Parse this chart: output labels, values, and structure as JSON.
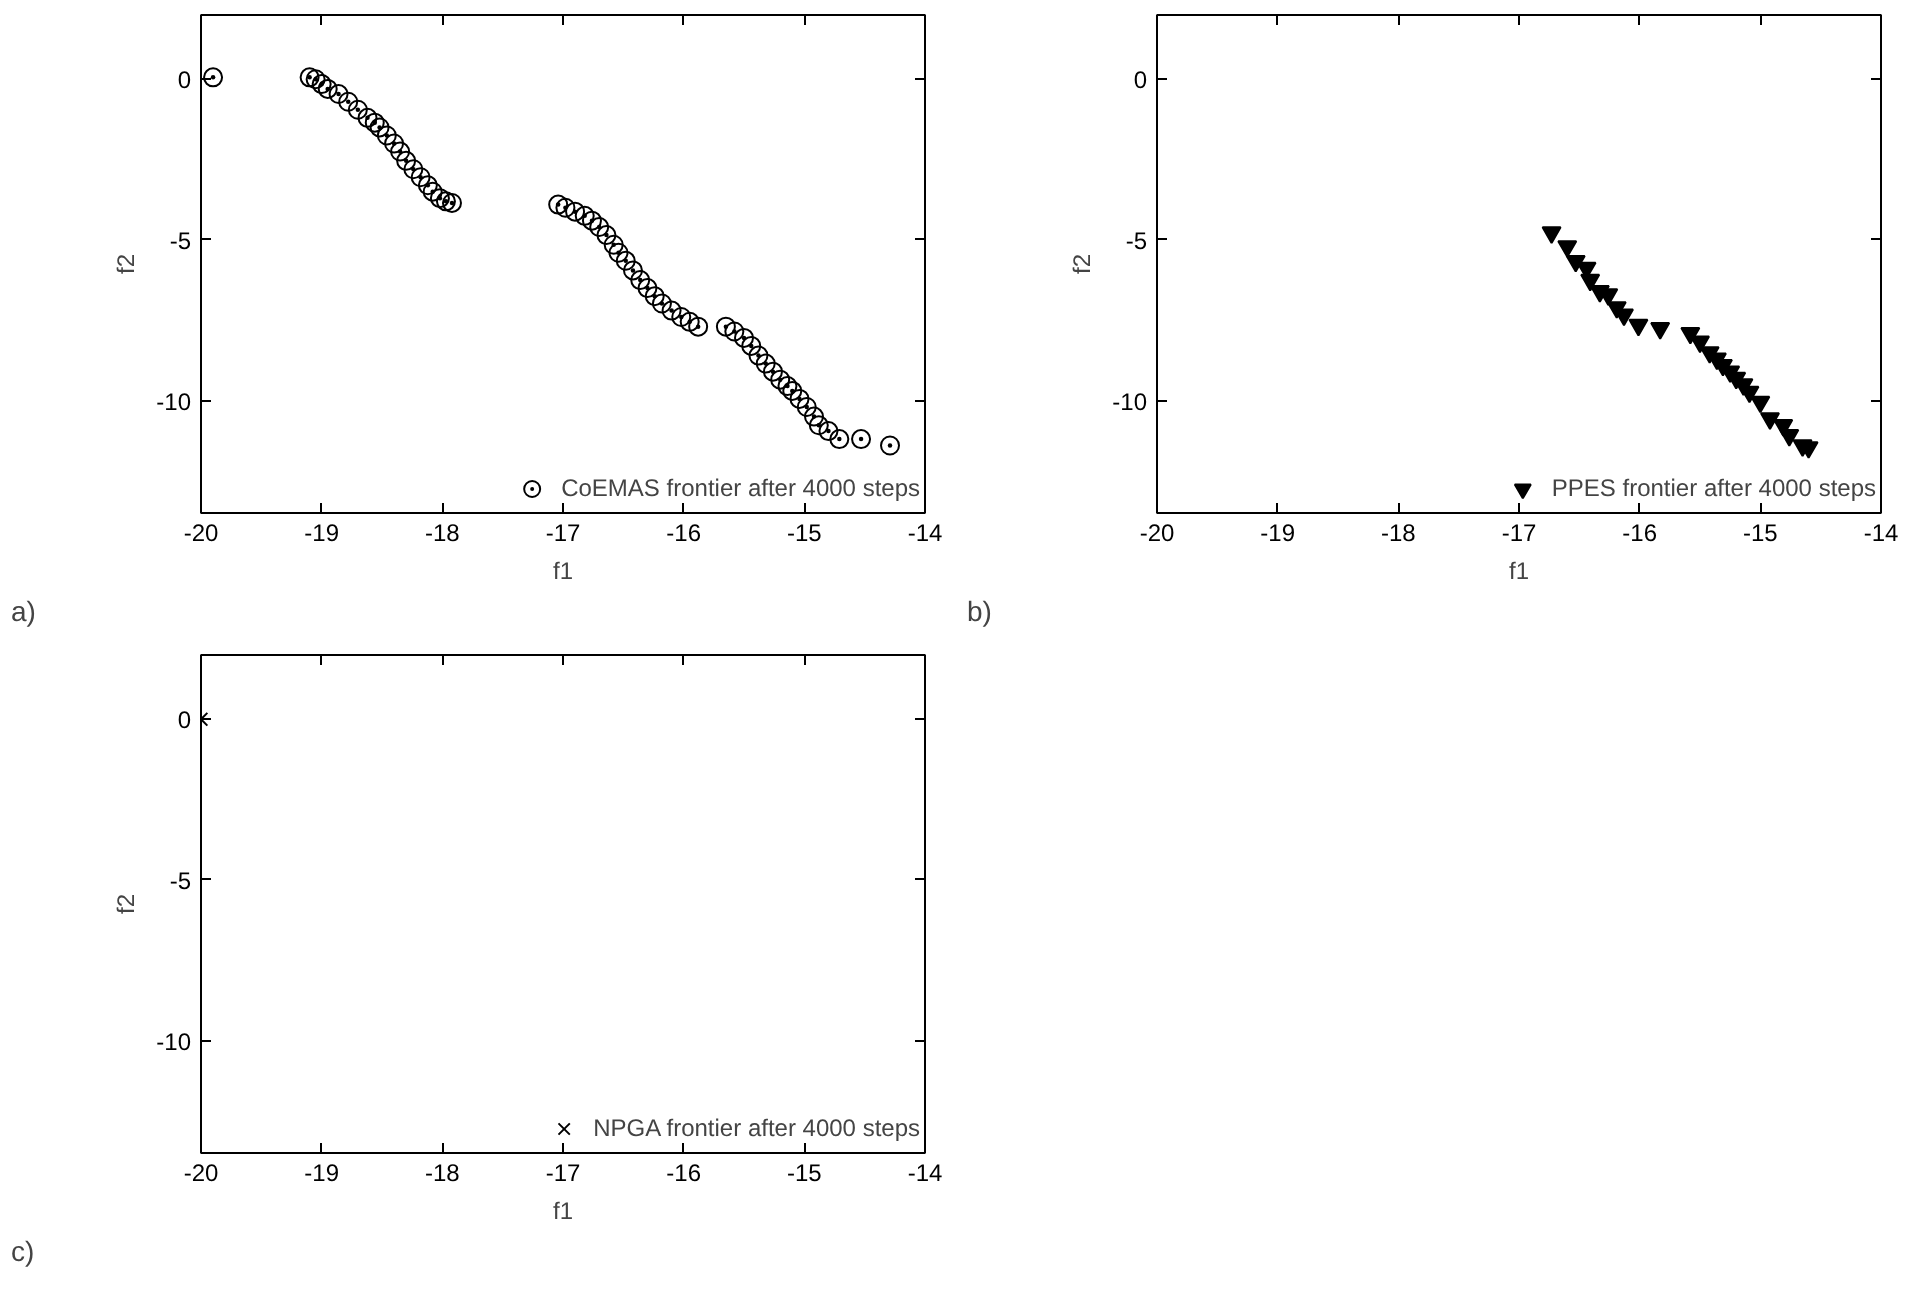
{
  "chart_data": [
    {
      "type": "scatter",
      "xlabel": "f1",
      "ylabel": "f2",
      "xlim": [
        -20,
        -14
      ],
      "ylim": [
        -13.5,
        2
      ],
      "xticks": [
        -20,
        -19,
        -18,
        -17,
        -16,
        -15,
        -14
      ],
      "yticks": [
        -10,
        -5,
        0
      ],
      "legend": "bottom right",
      "marker": "circle",
      "grid": false,
      "annotations": [
        "a)"
      ],
      "series": [
        {
          "name": "CoEMAS frontier after 4000 steps",
          "color": "#000000",
          "x": [
            -19.9,
            -19.1,
            -19.05,
            -19.0,
            -18.95,
            -18.86,
            -18.78,
            -18.7,
            -18.62,
            -18.56,
            -18.52,
            -18.46,
            -18.4,
            -18.35,
            -18.3,
            -18.24,
            -18.18,
            -18.12,
            -18.08,
            -18.02,
            -17.97,
            -17.92,
            -17.04,
            -16.98,
            -16.9,
            -16.82,
            -16.76,
            -16.7,
            -16.64,
            -16.58,
            -16.54,
            -16.48,
            -16.42,
            -16.36,
            -16.3,
            -16.24,
            -16.18,
            -16.1,
            -16.02,
            -15.95,
            -15.88,
            -15.65,
            -15.58,
            -15.5,
            -15.44,
            -15.38,
            -15.32,
            -15.26,
            -15.2,
            -15.14,
            -15.1,
            -15.04,
            -14.98,
            -14.92,
            -14.88,
            -14.8,
            -14.71,
            -14.53,
            -14.29
          ],
          "values": [
            0.06,
            0.06,
            0.0,
            -0.15,
            -0.3,
            -0.46,
            -0.7,
            -0.95,
            -1.2,
            -1.35,
            -1.5,
            -1.75,
            -2.0,
            -2.25,
            -2.54,
            -2.8,
            -3.05,
            -3.3,
            -3.5,
            -3.7,
            -3.8,
            -3.85,
            -3.9,
            -4.0,
            -4.12,
            -4.25,
            -4.4,
            -4.6,
            -4.85,
            -5.15,
            -5.4,
            -5.65,
            -5.95,
            -6.25,
            -6.5,
            -6.75,
            -6.98,
            -7.2,
            -7.4,
            -7.55,
            -7.7,
            -7.7,
            -7.85,
            -8.05,
            -8.3,
            -8.6,
            -8.85,
            -9.1,
            -9.35,
            -9.55,
            -9.7,
            -9.95,
            -10.2,
            -10.5,
            -10.77,
            -10.95,
            -11.2,
            -11.2,
            -11.4
          ]
        }
      ]
    },
    {
      "type": "scatter",
      "xlabel": "f1",
      "ylabel": "f2",
      "xlim": [
        -20,
        -14
      ],
      "ylim": [
        -13.5,
        2
      ],
      "xticks": [
        -20,
        -19,
        -18,
        -17,
        -16,
        -15,
        -14
      ],
      "yticks": [
        -10,
        -5,
        0
      ],
      "legend": "bottom right",
      "marker": "triangle",
      "grid": false,
      "annotations": [
        "b)"
      ],
      "series": [
        {
          "name": "PPES frontier after 4000 steps",
          "color": "#000000",
          "x": [
            -16.73,
            -16.6,
            -16.53,
            -16.44,
            -16.41,
            -16.33,
            -16.26,
            -16.19,
            -16.13,
            -16.01,
            -15.83,
            -15.58,
            -15.5,
            -15.42,
            -15.36,
            -15.31,
            -15.25,
            -15.2,
            -15.14,
            -15.09,
            -15.0,
            -14.92,
            -14.81,
            -14.76,
            -14.65,
            -14.6
          ],
          "values": [
            -4.77,
            -5.2,
            -5.66,
            -5.87,
            -6.25,
            -6.6,
            -6.7,
            -7.1,
            -7.33,
            -7.65,
            -7.75,
            -7.9,
            -8.17,
            -8.5,
            -8.7,
            -8.9,
            -9.1,
            -9.3,
            -9.5,
            -9.73,
            -10.04,
            -10.56,
            -10.77,
            -11.08,
            -11.4,
            -11.46
          ]
        }
      ]
    },
    {
      "type": "scatter",
      "xlabel": "f1",
      "ylabel": "f2",
      "xlim": [
        -20,
        -14
      ],
      "ylim": [
        -13.5,
        2
      ],
      "xticks": [
        -20,
        -19,
        -18,
        -17,
        -16,
        -15,
        -14
      ],
      "yticks": [
        -10,
        -5,
        0
      ],
      "legend": "bottom right",
      "marker": "cross",
      "grid": false,
      "annotations": [
        "c)"
      ],
      "series": [
        {
          "name": "NPGA frontier after 4000 steps",
          "color": "#000000",
          "x": [
            -20.0
          ],
          "values": [
            0.0
          ]
        }
      ]
    }
  ]
}
